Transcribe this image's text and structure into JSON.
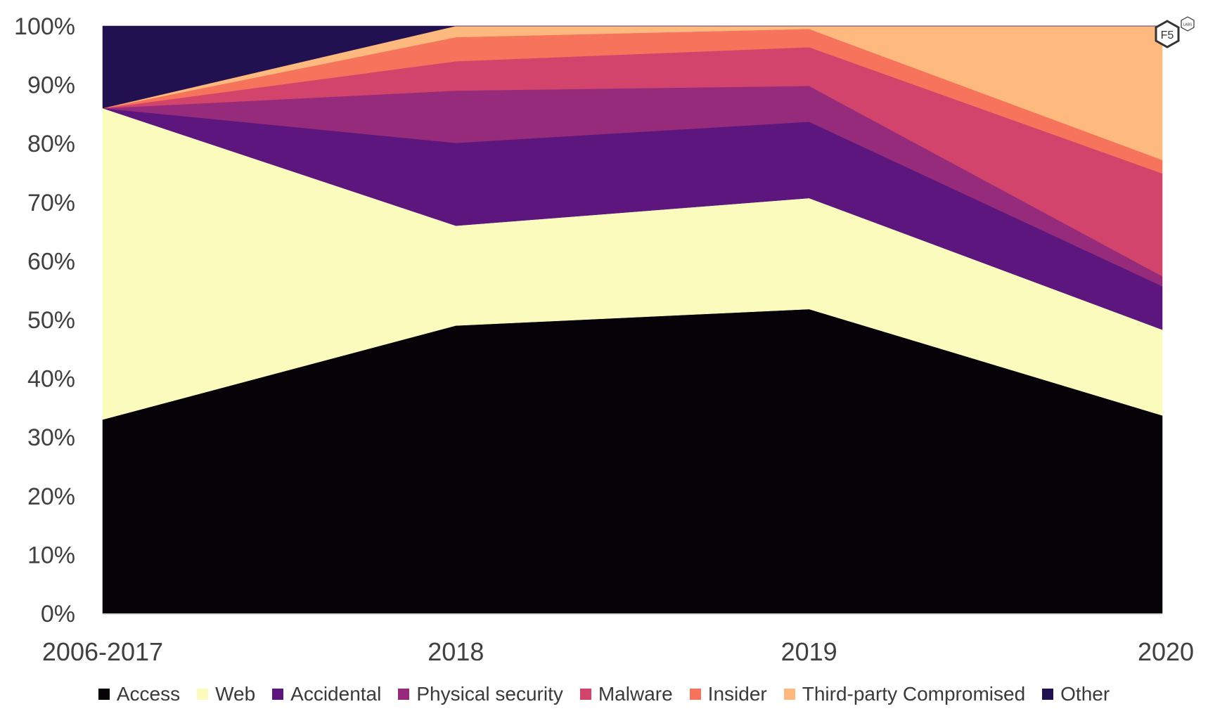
{
  "chart_data": {
    "type": "area",
    "stacked": true,
    "title": "",
    "xlabel": "",
    "ylabel": "",
    "ylim": [
      0,
      100
    ],
    "y_ticks": [
      "0%",
      "10%",
      "20%",
      "30%",
      "40%",
      "50%",
      "60%",
      "70%",
      "80%",
      "90%",
      "100%"
    ],
    "categories": [
      "2006-2017",
      "2018",
      "2019",
      "2020"
    ],
    "grid": false,
    "legend_position": "bottom",
    "series": [
      {
        "name": "Access",
        "color": "#050308",
        "values": [
          33.0,
          49.0,
          51.8,
          33.7
        ]
      },
      {
        "name": "Web",
        "color": "#fcfbbe",
        "values": [
          53.0,
          17.0,
          18.9,
          14.6
        ]
      },
      {
        "name": "Accidental",
        "color": "#5c167d",
        "values": [
          0.0,
          14.1,
          13.0,
          7.4
        ]
      },
      {
        "name": "Physical security",
        "color": "#962a7b",
        "values": [
          0.0,
          8.9,
          6.1,
          1.7
        ]
      },
      {
        "name": "Malware",
        "color": "#d3446d",
        "values": [
          0.0,
          5.0,
          6.6,
          17.5
        ]
      },
      {
        "name": "Insider",
        "color": "#f6745c",
        "values": [
          0.0,
          4.1,
          3.1,
          2.3
        ]
      },
      {
        "name": "Third-party Compromised",
        "color": "#feb97f",
        "values": [
          0.0,
          1.9,
          0.5,
          22.8
        ]
      },
      {
        "name": "Other",
        "color": "#221150",
        "values": [
          14.0,
          0.0,
          0.0,
          0.0
        ]
      }
    ]
  },
  "logo": {
    "main": "F5",
    "badge": "LABS"
  }
}
